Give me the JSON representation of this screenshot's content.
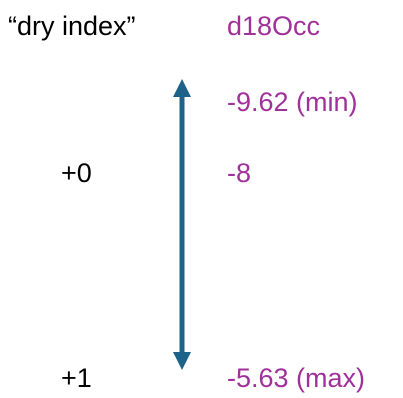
{
  "diagram": {
    "left_heading": "“dry index”",
    "right_heading": "d18Occ",
    "arrow_color": "#1d6288",
    "label_color": "#a0309a",
    "rows": [
      {
        "index": "",
        "value": "-9.62 (min)"
      },
      {
        "index": "+0",
        "value": "-8"
      },
      {
        "index": "+1",
        "value": "-5.63 (max)"
      }
    ]
  }
}
